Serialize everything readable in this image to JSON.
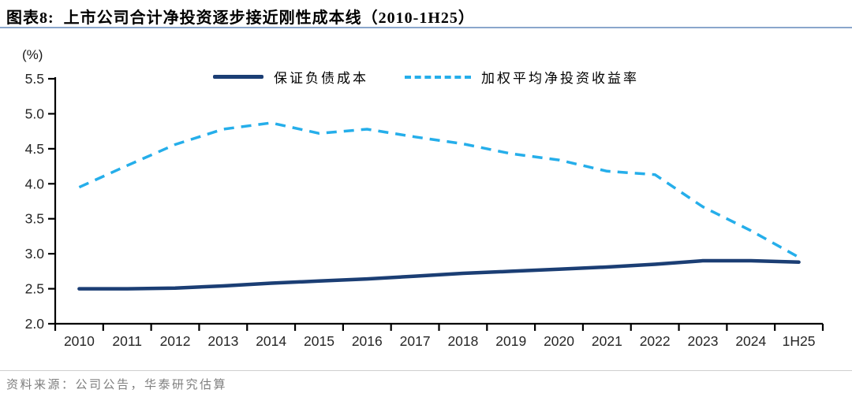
{
  "header": {
    "title": "图表8:  上市公司合计净投资逐步接近刚性成本线（2010-1H25）"
  },
  "chart_data": {
    "type": "line",
    "title": "上市公司合计净投资逐步接近刚性成本线（2010-1H25）",
    "unit_label": "(%)",
    "categories": [
      "2010",
      "2011",
      "2012",
      "2013",
      "2014",
      "2015",
      "2016",
      "2017",
      "2018",
      "2019",
      "2020",
      "2021",
      "2022",
      "2023",
      "2024",
      "1H25"
    ],
    "series": [
      {
        "name": "保证负债成本",
        "style": "solid",
        "color": "#1b3e74",
        "values": [
          2.5,
          2.5,
          2.51,
          2.54,
          2.58,
          2.61,
          2.64,
          2.68,
          2.72,
          2.75,
          2.78,
          2.81,
          2.85,
          2.9,
          2.9,
          2.88
        ]
      },
      {
        "name": "加权平均净投资收益率",
        "style": "dashed",
        "color": "#25aeea",
        "values": [
          3.95,
          4.26,
          4.56,
          4.78,
          4.87,
          4.72,
          4.78,
          4.67,
          4.57,
          4.43,
          4.34,
          4.18,
          4.13,
          3.67,
          3.33,
          2.95
        ]
      }
    ],
    "ylim": [
      2.0,
      5.5
    ],
    "ytick_step": 0.5,
    "xlabel": "",
    "ylabel": "(%)",
    "grid": false,
    "legend_position": "top-center",
    "axis_color": "#000000"
  },
  "footer": {
    "source": "资料来源：公司公告，华泰研究估算"
  }
}
